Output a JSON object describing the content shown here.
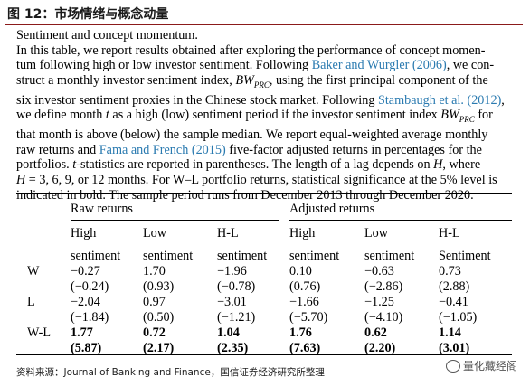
{
  "figure": {
    "title": "图 12：市场情绪与概念动量"
  },
  "caption": {
    "title_line": "Sentiment and concept momentum.",
    "p1": "In this table, we report results obtained after exploring the performance of concept momen-",
    "p2": "tum following high or low investor sentiment. Following ",
    "c_baker": "Baker and Wurgler (2006)",
    "p3": ", we con-",
    "p4": "struct a monthly investor sentiment index, ",
    "bw_prc": "BW",
    "sub_prc": "PRC",
    "p5": ", using the first principal component of the",
    "p6": "six investor sentiment proxies in the Chinese stock market. Following ",
    "c_stamb": "Stambaugh et al. (2012)",
    "p7": ",",
    "p8": "we define month ",
    "t": "t",
    "p9": " as a high (low) sentiment period if the investor sentiment index ",
    "p10": " for",
    "p11": "that month is above (below) the sample median. We report equal-weighted average monthly",
    "p12": "raw returns and ",
    "c_fama": "Fama and French (2015)",
    "p13": " five-factor adjusted returns in percentages for the",
    "p14": "portfolios. ",
    "t2": "t",
    "p15": "-statistics are reported in parentheses. The length of a lag depends on ",
    "h": "H",
    "p16": ", where",
    "p17": " = 3, 6, 9, or 12 months. For W–L portfolio returns, statistical significance at the 5% level is",
    "p18": "indicated in bold. The sample period runs from December 2013 through December 2020."
  },
  "table": {
    "group_headers": [
      "Raw returns",
      "Adjusted returns"
    ],
    "col_headers": [
      "High",
      "Low",
      "H-L",
      "High",
      "Low",
      "H-L"
    ],
    "sub_headers": [
      "sentiment",
      "sentiment",
      "sentiment",
      "sentiment",
      "sentiment",
      "Sentiment"
    ],
    "rows": [
      {
        "label": "W",
        "values": [
          "−0.27",
          "1.70",
          "−1.96",
          "0.10",
          "−0.63",
          "0.73"
        ],
        "tstats": [
          "(−0.24)",
          "(0.93)",
          "(−0.78)",
          "(0.76)",
          "(−2.86)",
          "(2.88)"
        ]
      },
      {
        "label": "L",
        "values": [
          "−2.04",
          "0.97",
          "−3.01",
          "−1.66",
          "−1.25",
          "−0.41"
        ],
        "tstats": [
          "(−1.84)",
          "(0.50)",
          "(−1.21)",
          "(−5.70)",
          "(−4.10)",
          "(−1.05)"
        ]
      },
      {
        "label": "W-L",
        "values": [
          "1.77",
          "0.72",
          "1.04",
          "1.76",
          "0.62",
          "1.14"
        ],
        "tstats": [
          "(5.87)",
          "(2.17)",
          "(2.35)",
          "(7.63)",
          "(2.20)",
          "(3.01)"
        ]
      }
    ]
  },
  "footer": {
    "source": "资料来源：Journal of Banking and Finance，国信证券经济研究所整理"
  },
  "watermark": {
    "text": "量化藏经阁"
  }
}
